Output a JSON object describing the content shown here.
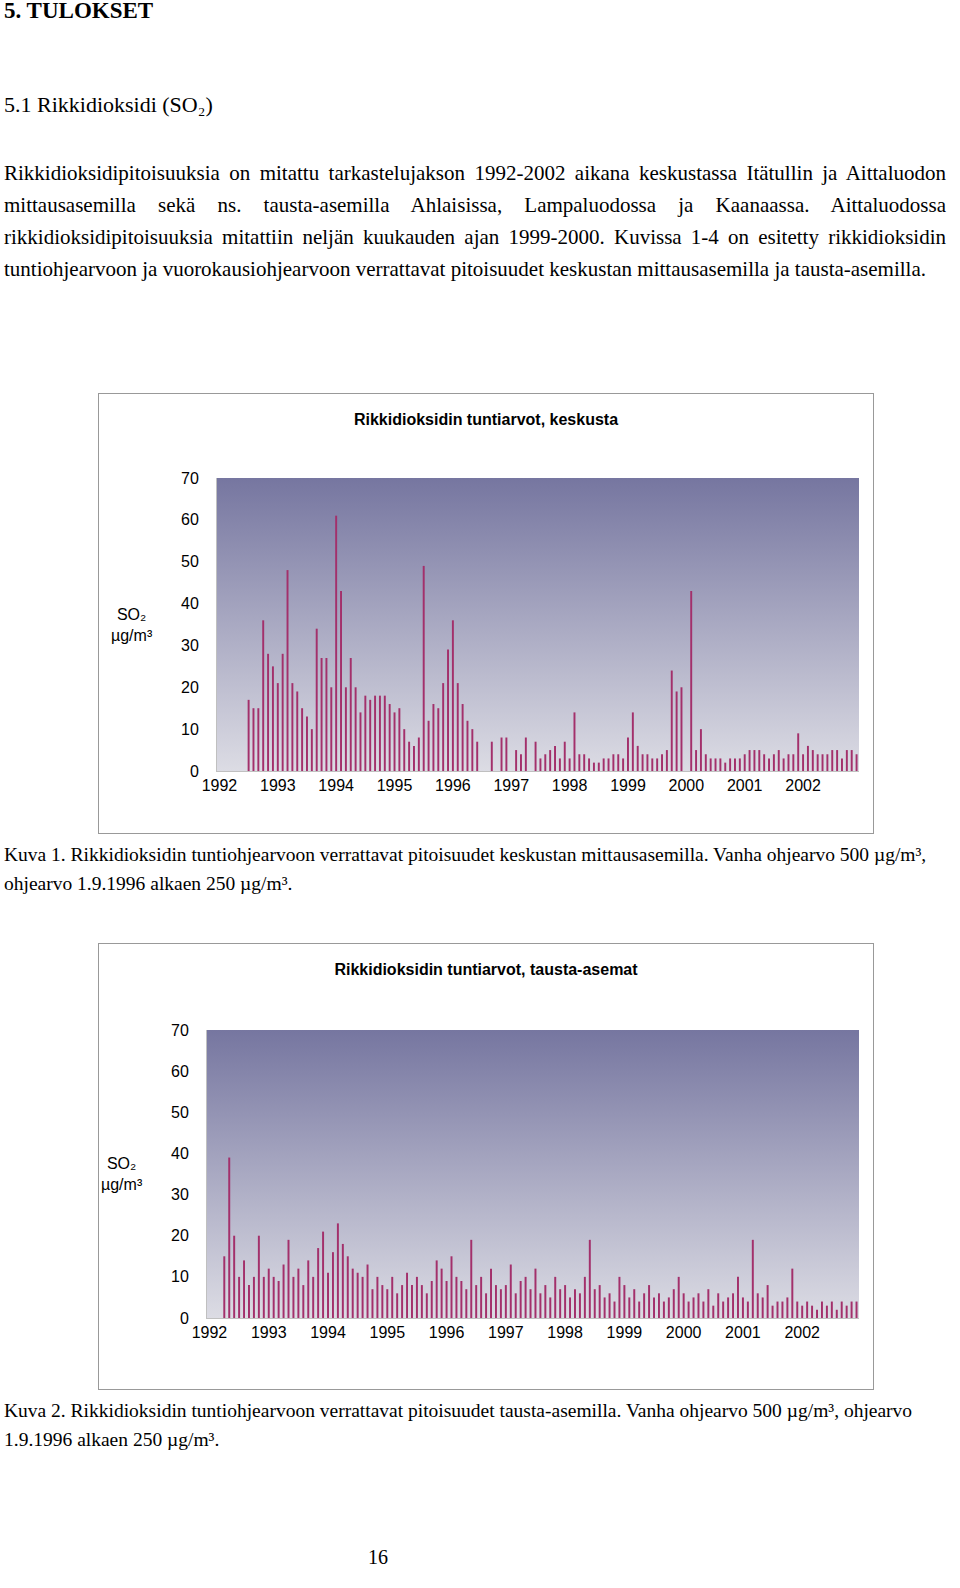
{
  "heading": "5. TULOKSET",
  "section": "5.1 Rikkidioksidi (SO₂)",
  "paragraph": "Rikkidioksidipitoisuuksia on mitattu tarkastelujakson 1992-2002 aikana keskustassa Itätullin ja Aittaluodon mittausasemilla sekä ns. tausta-asemilla Ahlaisissa, Lampaluodossa ja Kaanaassa. Aittaluodossa rikkidioksidipitoisuuksia mitattiin neljän kuukauden ajan 1999-2000. Kuvissa 1-4 on esitetty rikkidioksidin tuntiohjearvoon ja vuorokausiohjearvoon verrattavat pitoisuudet keskustan mittausasemilla ja tausta-asemilla.",
  "captions": [
    "Kuva 1. Rikkidioksidin tuntiohjearvoon verrattavat pitoisuudet keskustan mittausasemilla. Vanha ohjearvo 500 µg/m³, ohjearvo 1.9.1996 alkaen 250 µg/m³.",
    "Kuva 2. Rikkidioksidin tuntiohjearvoon verrattavat pitoisuudet tausta-asemilla. Vanha ohjearvo 500 µg/m³, ohjearvo 1.9.1996 alkaen 250 µg/m³."
  ],
  "page_number": "16",
  "chart_data": [
    {
      "type": "bar",
      "title": "Rikkidioksidin tuntiarvot, keskusta",
      "ylabel": [
        "SO₂",
        "µg/m³"
      ],
      "categories": [
        "1992",
        null,
        null,
        null,
        null,
        null,
        null,
        null,
        null,
        null,
        null,
        null,
        "1993",
        null,
        null,
        null,
        null,
        null,
        null,
        null,
        null,
        null,
        null,
        null,
        "1994",
        null,
        null,
        null,
        null,
        null,
        null,
        null,
        null,
        null,
        null,
        null,
        "1995",
        null,
        null,
        null,
        null,
        null,
        null,
        null,
        null,
        null,
        null,
        null,
        "1996",
        null,
        null,
        null,
        null,
        null,
        null,
        null,
        null,
        null,
        null,
        null,
        "1997",
        null,
        null,
        null,
        null,
        null,
        null,
        null,
        null,
        null,
        null,
        null,
        "1998",
        null,
        null,
        null,
        null,
        null,
        null,
        null,
        null,
        null,
        null,
        null,
        "1999",
        null,
        null,
        null,
        null,
        null,
        null,
        null,
        null,
        null,
        null,
        null,
        "2000",
        null,
        null,
        null,
        null,
        null,
        null,
        null,
        null,
        null,
        null,
        null,
        "2001",
        null,
        null,
        null,
        null,
        null,
        null,
        null,
        null,
        null,
        null,
        null,
        "2002",
        null,
        null,
        null,
        null,
        null,
        null,
        null,
        null,
        null,
        null,
        null
      ],
      "values": [
        null,
        null,
        null,
        null,
        null,
        null,
        17,
        15,
        15,
        36,
        28,
        25,
        21,
        28,
        48,
        21,
        19,
        15,
        13,
        10,
        34,
        27,
        27,
        20,
        61,
        43,
        20,
        27,
        20,
        14,
        18,
        17,
        18,
        18,
        18,
        16,
        14,
        15,
        10,
        7,
        6,
        8,
        49,
        12,
        16,
        15,
        21,
        29,
        36,
        21,
        16,
        12,
        10,
        7,
        null,
        null,
        7,
        null,
        8,
        8,
        null,
        5,
        4,
        8,
        null,
        7,
        3,
        4,
        5,
        6,
        3,
        7,
        3,
        14,
        4,
        4,
        3,
        2,
        2,
        3,
        3,
        4,
        4,
        3,
        8,
        14,
        6,
        4,
        4,
        3,
        3,
        4,
        5,
        24,
        19,
        20,
        null,
        43,
        5,
        10,
        4,
        3,
        3,
        3,
        2,
        3,
        3,
        3,
        4,
        5,
        5,
        5,
        4,
        3,
        4,
        5,
        3,
        4,
        4,
        9,
        4,
        6,
        5,
        4,
        4,
        4,
        5,
        5,
        3,
        5,
        5,
        4
      ],
      "color": "#a3306b",
      "ylim": [
        0,
        70
      ],
      "yticks": [
        0,
        10,
        20,
        30,
        40,
        50,
        60,
        70
      ],
      "grid": false
    },
    {
      "type": "bar",
      "title": "Rikkidioksidin tuntiarvot, tausta-asemat",
      "ylabel": [
        "SO₂",
        "µg/m³"
      ],
      "categories": [
        "1992",
        null,
        null,
        null,
        null,
        null,
        null,
        null,
        null,
        null,
        null,
        null,
        "1993",
        null,
        null,
        null,
        null,
        null,
        null,
        null,
        null,
        null,
        null,
        null,
        "1994",
        null,
        null,
        null,
        null,
        null,
        null,
        null,
        null,
        null,
        null,
        null,
        "1995",
        null,
        null,
        null,
        null,
        null,
        null,
        null,
        null,
        null,
        null,
        null,
        "1996",
        null,
        null,
        null,
        null,
        null,
        null,
        null,
        null,
        null,
        null,
        null,
        "1997",
        null,
        null,
        null,
        null,
        null,
        null,
        null,
        null,
        null,
        null,
        null,
        "1998",
        null,
        null,
        null,
        null,
        null,
        null,
        null,
        null,
        null,
        null,
        null,
        "1999",
        null,
        null,
        null,
        null,
        null,
        null,
        null,
        null,
        null,
        null,
        null,
        "2000",
        null,
        null,
        null,
        null,
        null,
        null,
        null,
        null,
        null,
        null,
        null,
        "2001",
        null,
        null,
        null,
        null,
        null,
        null,
        null,
        null,
        null,
        null,
        null,
        "2002",
        null,
        null,
        null,
        null,
        null,
        null,
        null,
        null,
        null,
        null,
        null
      ],
      "values": [
        null,
        null,
        null,
        15,
        39,
        20,
        10,
        14,
        8,
        10,
        20,
        10,
        12,
        10,
        9,
        13,
        19,
        10,
        12,
        8,
        14,
        10,
        17,
        21,
        11,
        16,
        23,
        18,
        15,
        12,
        11,
        10,
        13,
        7,
        10,
        8,
        7,
        10,
        6,
        8,
        11,
        8,
        10,
        8,
        6,
        9,
        14,
        12,
        9,
        15,
        10,
        9,
        7,
        19,
        8,
        10,
        6,
        12,
        8,
        7,
        8,
        13,
        6,
        9,
        10,
        7,
        12,
        6,
        8,
        5,
        10,
        7,
        8,
        5,
        7,
        6,
        10,
        19,
        7,
        8,
        5,
        6,
        4,
        10,
        8,
        5,
        7,
        4,
        6,
        8,
        5,
        6,
        4,
        5,
        7,
        10,
        6,
        4,
        5,
        6,
        4,
        7,
        3,
        6,
        4,
        5,
        6,
        10,
        5,
        4,
        19,
        6,
        5,
        8,
        3,
        4,
        4,
        5,
        12,
        4,
        3,
        4,
        3,
        2,
        4,
        3,
        4,
        2,
        4,
        3,
        4,
        4
      ],
      "color": "#a3306b",
      "ylim": [
        0,
        70
      ],
      "yticks": [
        0,
        10,
        20,
        30,
        40,
        50,
        60,
        70
      ],
      "grid": false
    }
  ]
}
